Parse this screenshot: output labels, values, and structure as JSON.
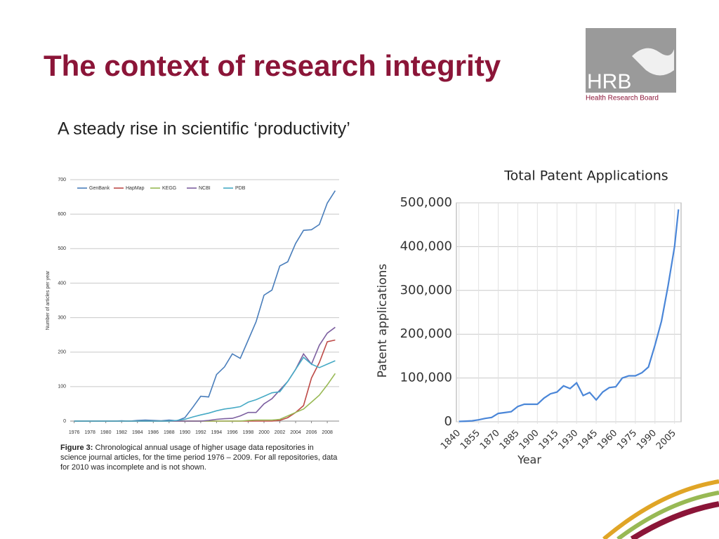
{
  "title": "The context of research integrity",
  "subtitle": "A steady rise in scientific ‘productivity’",
  "logo": {
    "name": "HRB",
    "caption": "Health Research Board"
  },
  "figure": {
    "label": "Figure 3:",
    "caption": "Chronological annual usage of higher usage data repositories in science journal articles, for the time period 1976 – 2009.  For all repositories, data for 2010 was incomplete and is not shown."
  },
  "chart_data": [
    {
      "type": "line",
      "ylabel": "Number of articles per year",
      "x": [
        1976,
        1977,
        1978,
        1979,
        1980,
        1981,
        1982,
        1983,
        1984,
        1985,
        1986,
        1987,
        1988,
        1989,
        1990,
        1991,
        1992,
        1993,
        1994,
        1995,
        1996,
        1997,
        1998,
        1999,
        2000,
        2001,
        2002,
        2003,
        2004,
        2005,
        2006,
        2007,
        2008,
        2009
      ],
      "xlim": [
        1975.5,
        2009.5
      ],
      "xticks": [
        1976,
        1978,
        1980,
        1982,
        1984,
        1986,
        1988,
        1990,
        1992,
        1994,
        1996,
        1998,
        2000,
        2002,
        2004,
        2006,
        2008
      ],
      "ylim": [
        0,
        700
      ],
      "yticks": [
        0,
        100,
        200,
        300,
        400,
        500,
        600,
        700
      ],
      "grid": true,
      "legend": "top",
      "series": [
        {
          "name": "GenBank",
          "color": "#4a7ebb",
          "values": [
            0,
            0,
            0,
            0,
            0,
            0,
            1,
            0,
            2,
            3,
            2,
            1,
            3,
            1,
            10,
            40,
            72,
            70,
            135,
            157,
            195,
            182,
            235,
            288,
            365,
            380,
            450,
            462,
            515,
            553,
            555,
            570,
            632,
            668
          ]
        },
        {
          "name": "HapMap",
          "color": "#be4b48",
          "values": [
            0,
            0,
            0,
            0,
            0,
            0,
            0,
            0,
            0,
            0,
            0,
            0,
            0,
            0,
            0,
            0,
            0,
            0,
            0,
            0,
            0,
            0,
            0,
            0,
            0,
            0,
            2,
            10,
            25,
            45,
            125,
            170,
            230,
            235
          ]
        },
        {
          "name": "KEGG",
          "color": "#98b954",
          "values": [
            0,
            0,
            0,
            0,
            0,
            0,
            0,
            0,
            0,
            0,
            0,
            0,
            0,
            0,
            0,
            0,
            0,
            0,
            0,
            0,
            0,
            0,
            2,
            3,
            3,
            3,
            5,
            15,
            25,
            35,
            55,
            75,
            105,
            138
          ]
        },
        {
          "name": "NCBI",
          "color": "#7d60a0",
          "values": [
            0,
            0,
            0,
            0,
            0,
            0,
            0,
            0,
            0,
            0,
            0,
            0,
            0,
            0,
            0,
            0,
            0,
            2,
            5,
            7,
            8,
            15,
            25,
            25,
            50,
            65,
            90,
            115,
            150,
            195,
            165,
            220,
            255,
            272
          ]
        },
        {
          "name": "PDB",
          "color": "#46aac5",
          "values": [
            0,
            0,
            0,
            0,
            0,
            0,
            0,
            0,
            0,
            0,
            0,
            0,
            0,
            2,
            5,
            12,
            18,
            23,
            30,
            35,
            38,
            42,
            55,
            62,
            72,
            82,
            85,
            115,
            150,
            185,
            165,
            155,
            165,
            175
          ]
        }
      ]
    },
    {
      "type": "line",
      "title": "Total Patent Applications",
      "xlabel": "Year",
      "ylabel": "Patent applications",
      "x": [
        1840,
        1845,
        1850,
        1855,
        1860,
        1865,
        1870,
        1875,
        1880,
        1885,
        1890,
        1895,
        1900,
        1905,
        1910,
        1915,
        1920,
        1925,
        1930,
        1935,
        1940,
        1945,
        1950,
        1955,
        1960,
        1965,
        1970,
        1975,
        1980,
        1985,
        1990,
        1995,
        2000,
        2005,
        2008
      ],
      "values": [
        800,
        1500,
        2200,
        4500,
        7700,
        10000,
        19000,
        21000,
        23000,
        35000,
        40000,
        40000,
        40000,
        54000,
        64000,
        68000,
        82000,
        76000,
        89000,
        60000,
        67000,
        50000,
        68000,
        78000,
        80000,
        100000,
        105000,
        105000,
        112000,
        125000,
        175000,
        230000,
        310000,
        400000,
        485000
      ],
      "color": "#4a86d8",
      "xlim": [
        1838,
        2010
      ],
      "xticks": [
        1840,
        1855,
        1870,
        1885,
        1900,
        1915,
        1930,
        1945,
        1960,
        1975,
        1990,
        2005
      ],
      "ylim": [
        0,
        500000
      ],
      "yticks": [
        0,
        {
          "value": 100000,
          "label": "100,000"
        },
        {
          "value": 200000,
          "label": "200,000"
        },
        {
          "value": 300000,
          "label": "300,000"
        },
        {
          "value": 400000,
          "label": "400,000"
        },
        {
          "value": 500000,
          "label": "500,000"
        }
      ],
      "grid": true
    }
  ]
}
